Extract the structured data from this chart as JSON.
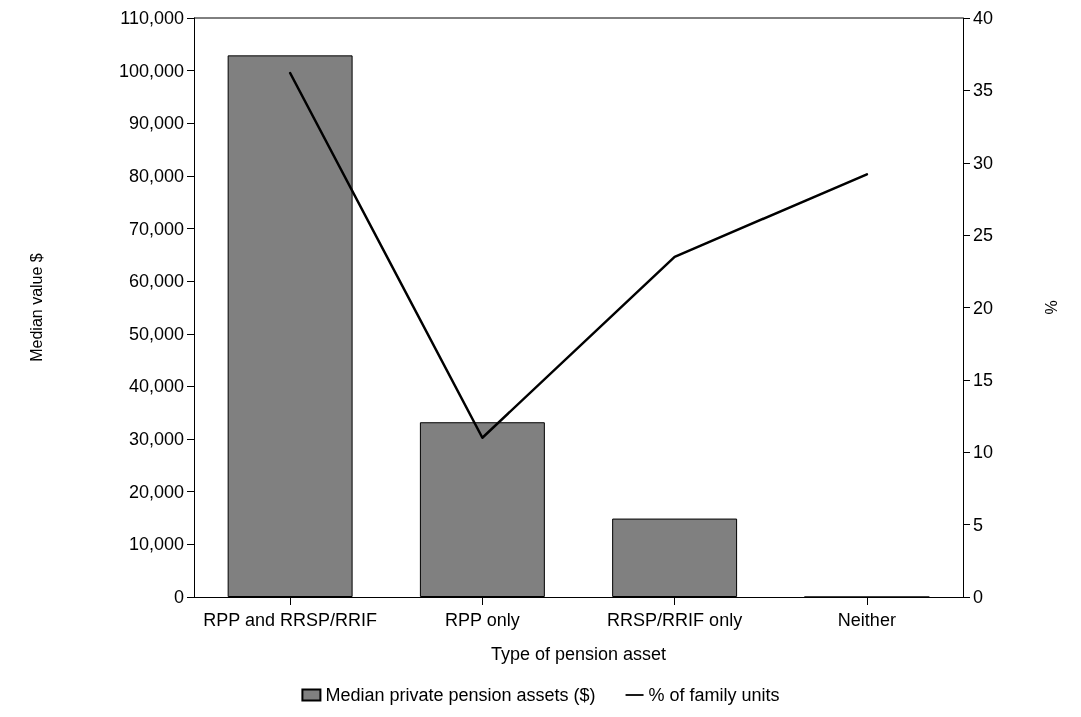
{
  "chart_data": {
    "type": "bar",
    "xlabel": "Type of pension asset",
    "ylabel": "Median value $",
    "y2label": "%",
    "categories": [
      "RPP and RRSP/RRIF",
      "RPP only",
      "RRSP/RRIF only",
      "Neither"
    ],
    "series": [
      {
        "name": "Median private pension assets ($)",
        "color": "#808080",
        "values": [
          102900,
          33200,
          14900,
          0
        ]
      },
      {
        "name": "% of family units",
        "type": "line",
        "axis": "y2",
        "color": "#000000",
        "values": [
          36.2,
          11.0,
          23.5,
          29.2
        ]
      }
    ],
    "ylim": [
      0,
      110000
    ],
    "yticks": [
      0,
      {
        "value": 10000,
        "label": "10,000"
      },
      {
        "value": 20000,
        "label": "20,000"
      },
      {
        "value": 30000,
        "label": "30,000"
      },
      {
        "value": 40000,
        "label": "40,000"
      },
      {
        "value": 50000,
        "label": "50,000"
      },
      {
        "value": 60000,
        "label": "60,000"
      },
      {
        "value": 70000,
        "label": "70,000"
      },
      {
        "value": 80000,
        "label": "80,000"
      },
      {
        "value": 90000,
        "label": "90,000"
      },
      {
        "value": 100000,
        "label": "100,000"
      },
      {
        "value": 110000,
        "label": "110,000"
      }
    ],
    "y2lim": [
      0,
      40
    ],
    "y2ticks": [
      0,
      5,
      10,
      15,
      20,
      25,
      30,
      35,
      40
    ],
    "legend": "bottom",
    "grid": false,
    "marker": "none",
    "line_style": "solid"
  }
}
